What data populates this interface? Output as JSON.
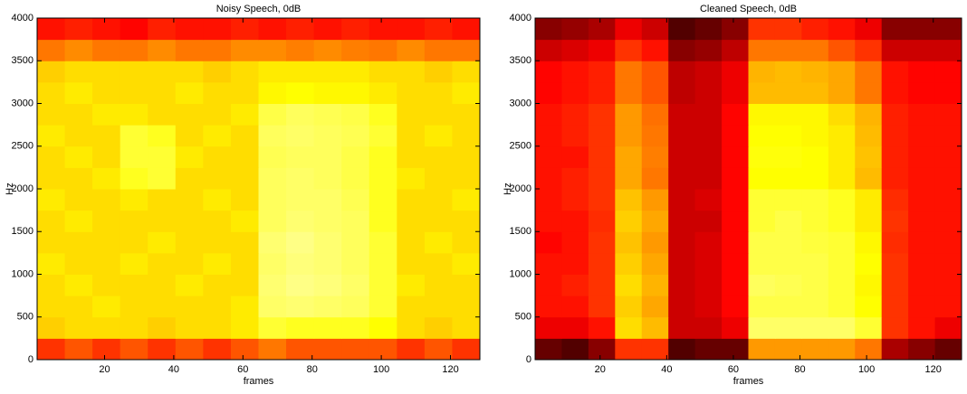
{
  "chart_data": [
    {
      "type": "heatmap",
      "title": "Noisy Speech, 0dB",
      "x_label": "frames",
      "y_label": "Hz",
      "colormap": "hot",
      "xlim": [
        0.5,
        128.5
      ],
      "ylim": [
        0,
        4000
      ],
      "xticks": [
        20,
        40,
        60,
        80,
        100,
        120
      ],
      "yticks": [
        0,
        500,
        1000,
        1500,
        2000,
        2500,
        3000,
        3500,
        4000
      ],
      "x_edges": [
        0.5,
        8.5,
        16.5,
        24.5,
        32.5,
        40.5,
        48.5,
        56.5,
        64.5,
        72.5,
        80.5,
        88.5,
        96.5,
        104.5,
        112.5,
        120.5,
        128.5
      ],
      "y_edges": [
        0,
        250,
        500,
        750,
        1000,
        1250,
        1500,
        1750,
        2000,
        2250,
        2500,
        2750,
        3000,
        3250,
        3500,
        3750,
        4000
      ],
      "z": [
        [
          0.45,
          0.5,
          0.45,
          0.5,
          0.45,
          0.5,
          0.45,
          0.5,
          0.55,
          0.5,
          0.5,
          0.5,
          0.5,
          0.45,
          0.5,
          0.45
        ],
        [
          0.68,
          0.7,
          0.7,
          0.7,
          0.68,
          0.7,
          0.7,
          0.72,
          0.8,
          0.78,
          0.78,
          0.78,
          0.75,
          0.7,
          0.68,
          0.7
        ],
        [
          0.7,
          0.7,
          0.72,
          0.7,
          0.7,
          0.7,
          0.7,
          0.72,
          0.85,
          0.86,
          0.85,
          0.84,
          0.8,
          0.7,
          0.7,
          0.7
        ],
        [
          0.7,
          0.72,
          0.7,
          0.7,
          0.7,
          0.72,
          0.7,
          0.7,
          0.86,
          0.88,
          0.87,
          0.85,
          0.8,
          0.72,
          0.7,
          0.7
        ],
        [
          0.72,
          0.7,
          0.7,
          0.72,
          0.7,
          0.7,
          0.72,
          0.7,
          0.85,
          0.87,
          0.86,
          0.84,
          0.8,
          0.7,
          0.7,
          0.72
        ],
        [
          0.7,
          0.7,
          0.7,
          0.7,
          0.72,
          0.7,
          0.7,
          0.7,
          0.86,
          0.88,
          0.86,
          0.84,
          0.8,
          0.7,
          0.72,
          0.7
        ],
        [
          0.7,
          0.72,
          0.7,
          0.7,
          0.7,
          0.7,
          0.7,
          0.72,
          0.84,
          0.86,
          0.85,
          0.84,
          0.78,
          0.7,
          0.7,
          0.7
        ],
        [
          0.72,
          0.7,
          0.7,
          0.72,
          0.7,
          0.7,
          0.72,
          0.7,
          0.84,
          0.85,
          0.85,
          0.83,
          0.78,
          0.7,
          0.7,
          0.72
        ],
        [
          0.7,
          0.7,
          0.72,
          0.78,
          0.8,
          0.7,
          0.7,
          0.7,
          0.84,
          0.85,
          0.84,
          0.82,
          0.78,
          0.72,
          0.7,
          0.7
        ],
        [
          0.7,
          0.72,
          0.7,
          0.8,
          0.8,
          0.72,
          0.7,
          0.7,
          0.83,
          0.84,
          0.84,
          0.82,
          0.78,
          0.7,
          0.7,
          0.7
        ],
        [
          0.72,
          0.7,
          0.7,
          0.8,
          0.78,
          0.7,
          0.72,
          0.7,
          0.84,
          0.85,
          0.84,
          0.83,
          0.8,
          0.7,
          0.72,
          0.7
        ],
        [
          0.7,
          0.7,
          0.72,
          0.72,
          0.7,
          0.7,
          0.7,
          0.72,
          0.82,
          0.84,
          0.83,
          0.82,
          0.78,
          0.7,
          0.7,
          0.7
        ],
        [
          0.7,
          0.72,
          0.7,
          0.7,
          0.7,
          0.72,
          0.7,
          0.7,
          0.74,
          0.75,
          0.74,
          0.74,
          0.72,
          0.7,
          0.7,
          0.72
        ],
        [
          0.68,
          0.7,
          0.7,
          0.7,
          0.7,
          0.7,
          0.68,
          0.7,
          0.72,
          0.72,
          0.72,
          0.72,
          0.7,
          0.7,
          0.68,
          0.7
        ],
        [
          0.55,
          0.58,
          0.55,
          0.55,
          0.58,
          0.55,
          0.55,
          0.58,
          0.58,
          0.56,
          0.58,
          0.56,
          0.55,
          0.58,
          0.55,
          0.55
        ],
        [
          0.4,
          0.42,
          0.4,
          0.38,
          0.42,
          0.4,
          0.4,
          0.42,
          0.4,
          0.42,
          0.4,
          0.42,
          0.4,
          0.4,
          0.42,
          0.4
        ]
      ]
    },
    {
      "type": "heatmap",
      "title": "Cleaned Speech, 0dB",
      "x_label": "frames",
      "y_label": "Hz",
      "colormap": "hot",
      "xlim": [
        0.5,
        128.5
      ],
      "ylim": [
        0,
        4000
      ],
      "xticks": [
        20,
        40,
        60,
        80,
        100,
        120
      ],
      "yticks": [
        0,
        500,
        1000,
        1500,
        2000,
        2500,
        3000,
        3500,
        4000
      ],
      "x_edges": [
        0.5,
        8.5,
        16.5,
        24.5,
        32.5,
        40.5,
        48.5,
        56.5,
        64.5,
        72.5,
        80.5,
        88.5,
        96.5,
        104.5,
        112.5,
        120.5,
        128.5
      ],
      "y_edges": [
        0,
        250,
        500,
        750,
        1000,
        1250,
        1500,
        1750,
        2000,
        2250,
        2500,
        2750,
        3000,
        3250,
        3500,
        3750,
        4000
      ],
      "z": [
        [
          0.15,
          0.12,
          0.2,
          0.45,
          0.45,
          0.12,
          0.15,
          0.15,
          0.6,
          0.6,
          0.6,
          0.6,
          0.55,
          0.25,
          0.2,
          0.15
        ],
        [
          0.35,
          0.35,
          0.4,
          0.7,
          0.65,
          0.3,
          0.3,
          0.35,
          0.85,
          0.85,
          0.85,
          0.85,
          0.8,
          0.45,
          0.4,
          0.35
        ],
        [
          0.4,
          0.4,
          0.45,
          0.68,
          0.62,
          0.3,
          0.32,
          0.38,
          0.82,
          0.82,
          0.82,
          0.8,
          0.75,
          0.45,
          0.4,
          0.4
        ],
        [
          0.4,
          0.42,
          0.45,
          0.7,
          0.64,
          0.3,
          0.32,
          0.38,
          0.84,
          0.83,
          0.82,
          0.8,
          0.74,
          0.45,
          0.4,
          0.4
        ],
        [
          0.4,
          0.4,
          0.45,
          0.68,
          0.62,
          0.3,
          0.32,
          0.38,
          0.82,
          0.82,
          0.82,
          0.8,
          0.75,
          0.45,
          0.4,
          0.4
        ],
        [
          0.38,
          0.4,
          0.45,
          0.66,
          0.6,
          0.3,
          0.32,
          0.38,
          0.82,
          0.82,
          0.81,
          0.8,
          0.74,
          0.44,
          0.4,
          0.4
        ],
        [
          0.4,
          0.4,
          0.44,
          0.68,
          0.62,
          0.3,
          0.3,
          0.38,
          0.8,
          0.82,
          0.8,
          0.78,
          0.72,
          0.45,
          0.4,
          0.4
        ],
        [
          0.4,
          0.42,
          0.45,
          0.66,
          0.6,
          0.3,
          0.32,
          0.38,
          0.8,
          0.8,
          0.8,
          0.78,
          0.72,
          0.44,
          0.4,
          0.4
        ],
        [
          0.4,
          0.42,
          0.45,
          0.62,
          0.55,
          0.3,
          0.3,
          0.38,
          0.75,
          0.75,
          0.75,
          0.72,
          0.65,
          0.42,
          0.4,
          0.4
        ],
        [
          0.4,
          0.4,
          0.45,
          0.62,
          0.56,
          0.3,
          0.3,
          0.38,
          0.76,
          0.76,
          0.75,
          0.72,
          0.66,
          0.42,
          0.4,
          0.4
        ],
        [
          0.4,
          0.42,
          0.45,
          0.6,
          0.55,
          0.3,
          0.3,
          0.38,
          0.75,
          0.75,
          0.74,
          0.72,
          0.65,
          0.42,
          0.4,
          0.4
        ],
        [
          0.4,
          0.42,
          0.45,
          0.6,
          0.54,
          0.3,
          0.3,
          0.38,
          0.74,
          0.74,
          0.74,
          0.7,
          0.64,
          0.42,
          0.4,
          0.4
        ],
        [
          0.38,
          0.4,
          0.42,
          0.55,
          0.5,
          0.28,
          0.3,
          0.35,
          0.65,
          0.65,
          0.65,
          0.62,
          0.55,
          0.4,
          0.38,
          0.38
        ],
        [
          0.38,
          0.4,
          0.42,
          0.55,
          0.5,
          0.28,
          0.3,
          0.35,
          0.64,
          0.65,
          0.64,
          0.62,
          0.55,
          0.4,
          0.38,
          0.38
        ],
        [
          0.3,
          0.32,
          0.35,
          0.45,
          0.4,
          0.2,
          0.22,
          0.28,
          0.55,
          0.55,
          0.55,
          0.5,
          0.45,
          0.3,
          0.3,
          0.3
        ],
        [
          0.2,
          0.22,
          0.25,
          0.35,
          0.3,
          0.12,
          0.15,
          0.2,
          0.45,
          0.45,
          0.42,
          0.4,
          0.35,
          0.2,
          0.2,
          0.2
        ]
      ]
    }
  ]
}
